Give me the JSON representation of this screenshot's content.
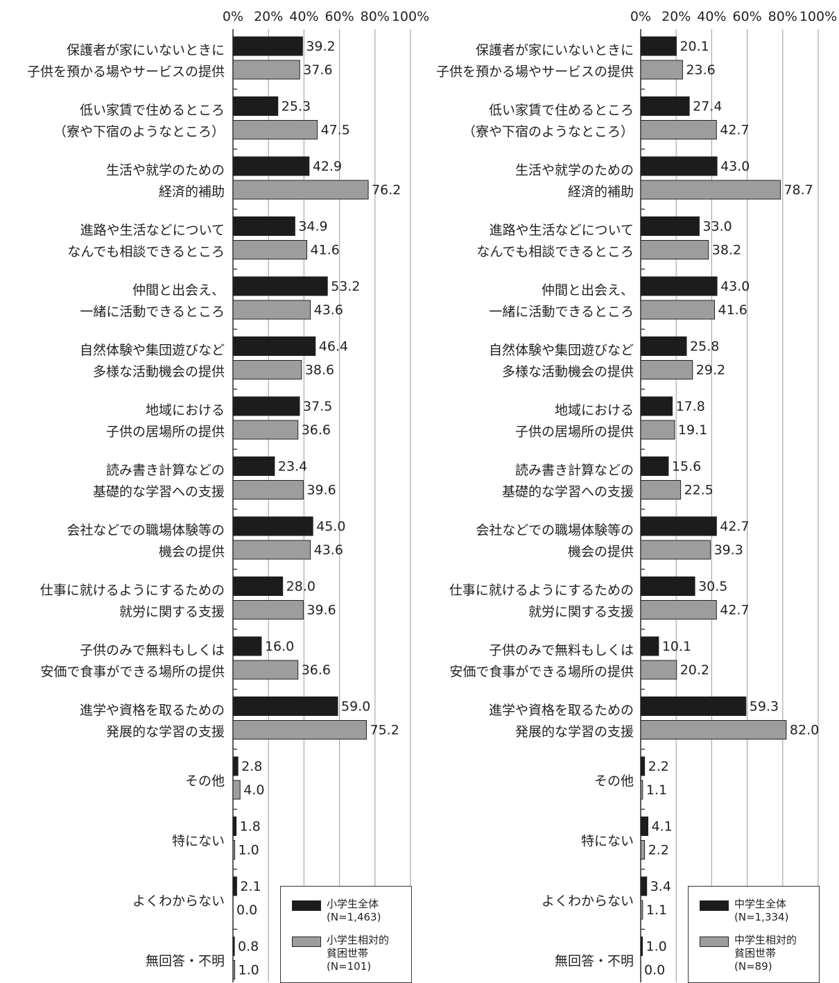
{
  "colors": {
    "series_dark": "#1c1c1c",
    "series_light": "#9d9d9d",
    "axis": "#333333",
    "grid": "#aaaaaa"
  },
  "chart_data": [
    {
      "type": "bar",
      "orientation": "horizontal",
      "xlim": [
        0,
        100
      ],
      "x_tick_labels": [
        "0%",
        "20%",
        "40%",
        "60%",
        "80%",
        "100%"
      ],
      "grid": true,
      "legend_position": "bottom-right",
      "categories": [
        "保護者が家にいないときに\n子供を預かる場やサービスの提供",
        "低い家賃で住めるところ\n（寮や下宿のようなところ）",
        "生活や就学のための\n経済的補助",
        "進路や生活などについて\nなんでも相談できるところ",
        "仲間と出会え、\n一緒に活動できるところ",
        "自然体験や集団遊びなど\n多様な活動機会の提供",
        "地域における\n子供の居場所の提供",
        "読み書き計算などの\n基礎的な学習への支援",
        "会社などでの職場体験等の\n機会の提供",
        "仕事に就けるようにするための\n就労に関する支援",
        "子供のみで無料もしくは\n安価で食事ができる場所の提供",
        "進学や資格を取るための\n発展的な学習の支援",
        "その他",
        "特にない",
        "よくわからない",
        "無回答・不明"
      ],
      "series": [
        {
          "name": "小学生全体\n(N=1,463)",
          "color": "#1c1c1c",
          "values": [
            39.2,
            25.3,
            42.9,
            34.9,
            53.2,
            46.4,
            37.5,
            23.4,
            45.0,
            28.0,
            16.0,
            59.0,
            2.8,
            1.8,
            2.1,
            0.8
          ]
        },
        {
          "name": "小学生相対的\n貧困世帯\n(N=101)",
          "color": "#9d9d9d",
          "values": [
            37.6,
            47.5,
            76.2,
            41.6,
            43.6,
            38.6,
            36.6,
            39.6,
            43.6,
            39.6,
            36.6,
            75.2,
            4.0,
            1.0,
            0.0,
            1.0
          ]
        }
      ]
    },
    {
      "type": "bar",
      "orientation": "horizontal",
      "xlim": [
        0,
        100
      ],
      "x_tick_labels": [
        "0%",
        "20%",
        "40%",
        "60%",
        "80%",
        "100%"
      ],
      "grid": true,
      "legend_position": "bottom-right",
      "categories": [
        "保護者が家にいないときに\n子供を預かる場やサービスの提供",
        "低い家賃で住めるところ\n（寮や下宿のようなところ）",
        "生活や就学のための\n経済的補助",
        "進路や生活などについて\nなんでも相談できるところ",
        "仲間と出会え、\n一緒に活動できるところ",
        "自然体験や集団遊びなど\n多様な活動機会の提供",
        "地域における\n子供の居場所の提供",
        "読み書き計算などの\n基礎的な学習への支援",
        "会社などでの職場体験等の\n機会の提供",
        "仕事に就けるようにするための\n就労に関する支援",
        "子供のみで無料もしくは\n安価で食事ができる場所の提供",
        "進学や資格を取るための\n発展的な学習の支援",
        "その他",
        "特にない",
        "よくわからない",
        "無回答・不明"
      ],
      "series": [
        {
          "name": "中学生全体\n(N=1,334)",
          "color": "#1c1c1c",
          "values": [
            20.1,
            27.4,
            43.0,
            33.0,
            43.0,
            25.8,
            17.8,
            15.6,
            42.7,
            30.5,
            10.1,
            59.3,
            2.2,
            4.1,
            3.4,
            1.0
          ]
        },
        {
          "name": "中学生相対的\n貧困世帯\n(N=89)",
          "color": "#9d9d9d",
          "values": [
            23.6,
            42.7,
            78.7,
            38.2,
            41.6,
            29.2,
            19.1,
            22.5,
            39.3,
            42.7,
            20.2,
            82.0,
            1.1,
            2.2,
            1.1,
            0.0
          ]
        }
      ]
    }
  ]
}
